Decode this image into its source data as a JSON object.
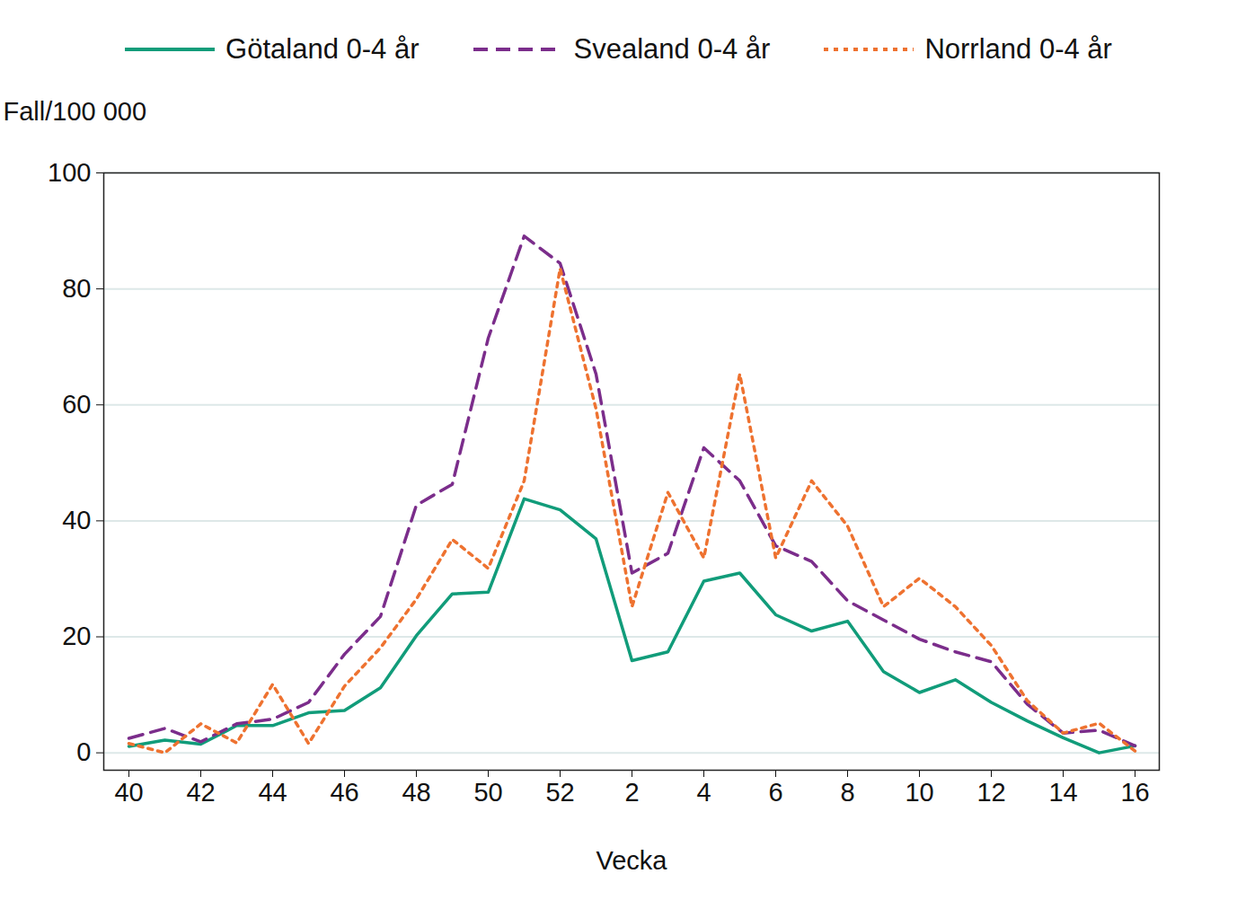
{
  "chart_data": {
    "type": "line",
    "x_label": "Vecka",
    "y_label": "Fall/100 000",
    "categories": [
      "40",
      null,
      "42",
      null,
      "44",
      null,
      "46",
      null,
      "48",
      null,
      "50",
      null,
      "52",
      null,
      "2",
      null,
      "4",
      null,
      "6",
      null,
      "8",
      null,
      "10",
      null,
      "12",
      null,
      "14",
      null,
      "16"
    ],
    "series": [
      {
        "name": "Götaland 0-4 år",
        "color": "#119c7a",
        "line_style": "solid",
        "values": [
          1.1,
          2.2,
          1.5,
          4.7,
          4.7,
          6.9,
          7.3,
          11.2,
          20.2,
          27.4,
          27.7,
          43.8,
          41.9,
          36.9,
          15.9,
          17.4,
          29.6,
          31.0,
          23.8,
          21.0,
          22.7,
          14.0,
          10.4,
          12.6,
          8.7,
          5.5,
          2.6,
          0,
          1.2
        ]
      },
      {
        "name": "Svealand 0-4 år",
        "color": "#7b2d8b",
        "line_style": "dashed",
        "values": [
          2.5,
          4.2,
          1.9,
          5.0,
          5.8,
          8.7,
          17.0,
          23.5,
          42.7,
          46.3,
          71.5,
          89.1,
          84.4,
          65.3,
          31.0,
          34.4,
          52.6,
          46.9,
          35.7,
          33.0,
          26.2,
          22.9,
          19.6,
          17.4,
          15.7,
          8.4,
          3.4,
          3.9,
          1.2
        ]
      },
      {
        "name": "Norrland 0-4 år",
        "color": "#ee7230",
        "line_style": "dotted",
        "values": [
          1.6,
          0,
          5.0,
          1.7,
          11.8,
          1.6,
          11.5,
          18.1,
          26.5,
          36.8,
          31.8,
          46.9,
          83.5,
          59.3,
          25.2,
          44.9,
          33.6,
          65.3,
          33.6,
          46.9,
          39.1,
          25.2,
          30.1,
          25.2,
          18.5,
          9.0,
          3.4,
          5.1,
          0.3
        ]
      }
    ],
    "ylim": [
      -3,
      100
    ],
    "yticks": [
      0,
      20,
      40,
      60,
      80,
      100
    ],
    "grid": true,
    "legend": "top"
  }
}
